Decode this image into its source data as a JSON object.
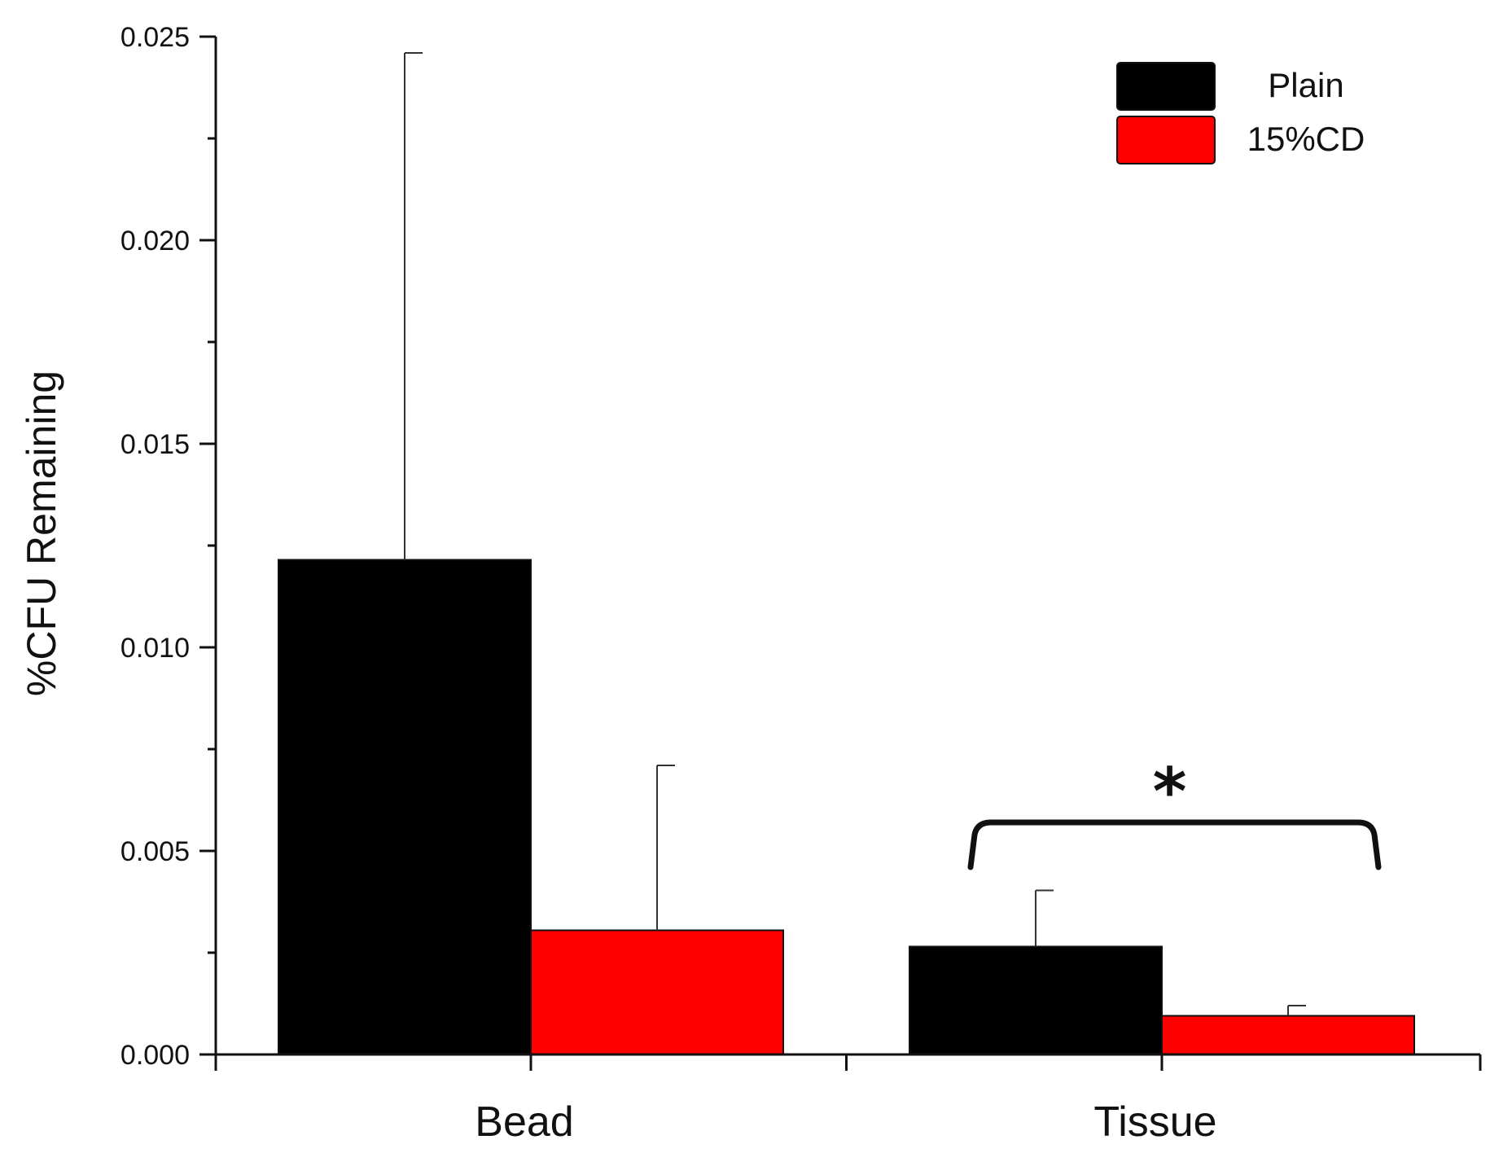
{
  "chart_data": {
    "type": "bar",
    "categories": [
      "Bead",
      "Tissue"
    ],
    "series": [
      {
        "name": "Plain",
        "color": "#000000",
        "values": [
          0.01215,
          0.00265
        ],
        "error": [
          0.01245,
          0.00138
        ]
      },
      {
        "name": "15%CD",
        "color": "#ff0000",
        "values": [
          0.00305,
          0.00095
        ],
        "error": [
          0.00405,
          0.00025
        ]
      }
    ],
    "title": "",
    "xlabel": "",
    "ylabel": "%CFU Remaining",
    "ylim": [
      0,
      0.025
    ],
    "yticks": [
      "0.000",
      "0.005",
      "0.010",
      "0.015",
      "0.020",
      "0.025"
    ],
    "grid": false,
    "legend": {
      "position": "top-right"
    },
    "annotations": [
      {
        "text": "*",
        "category": "Tissue",
        "type": "significance-bracket"
      }
    ]
  }
}
